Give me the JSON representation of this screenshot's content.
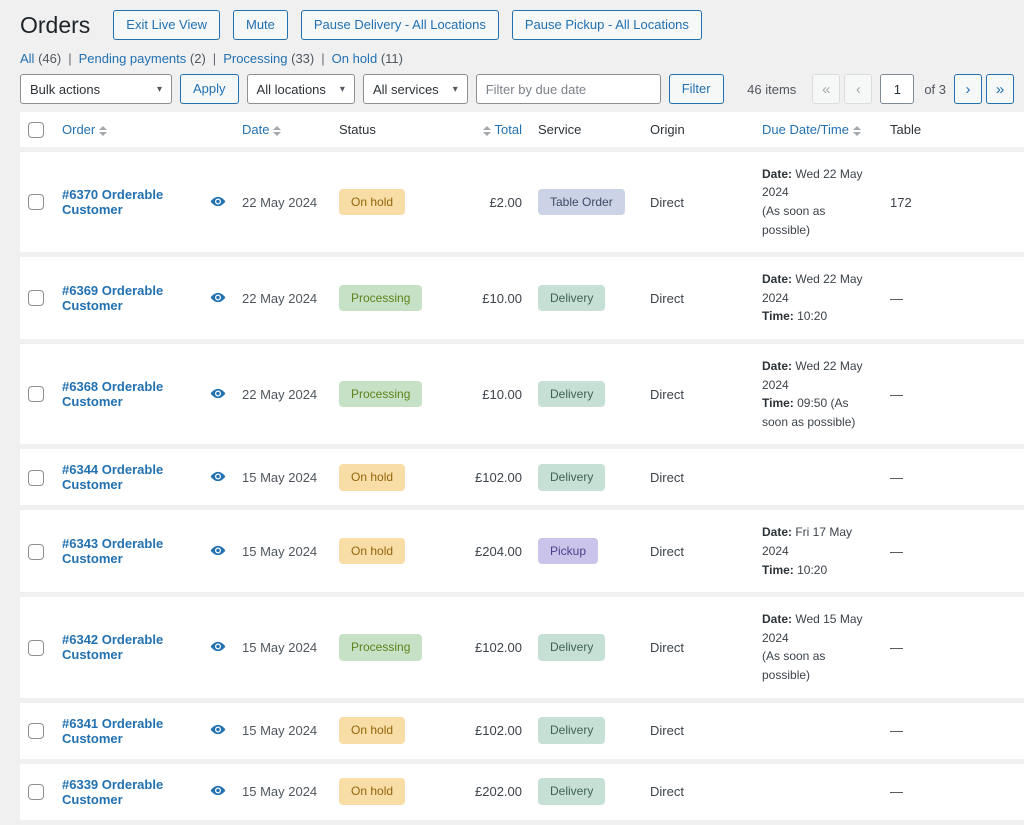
{
  "header": {
    "title": "Orders",
    "buttons": {
      "exit_live_view": "Exit Live View",
      "mute": "Mute",
      "pause_delivery": "Pause Delivery - All Locations",
      "pause_pickup": "Pause Pickup - All Locations"
    }
  },
  "filters": [
    {
      "label": "All",
      "count": "(46)"
    },
    {
      "label": "Pending payments",
      "count": "(2)"
    },
    {
      "label": "Processing",
      "count": "(33)"
    },
    {
      "label": "On hold",
      "count": "(11)"
    }
  ],
  "ui": {
    "separator": "|",
    "select_chevron": "▾"
  },
  "toolbar": {
    "bulk_actions": "Bulk actions",
    "apply": "Apply",
    "locations": "All locations",
    "services": "All services",
    "due_date_placeholder": "Filter by due date",
    "filter": "Filter"
  },
  "pagination": {
    "items": "46 items",
    "first": "«",
    "prev": "‹",
    "current_page": "1",
    "of": "of 3",
    "next": "›",
    "last": "»"
  },
  "table": {
    "headers": {
      "order": "Order",
      "date": "Date",
      "status": "Status",
      "total": "Total",
      "service": "Service",
      "origin": "Origin",
      "due": "Due Date/Time",
      "table": "Table"
    },
    "rows": [
      {
        "order": "#6370 Orderable Customer",
        "date": "22 May 2024",
        "status": {
          "label": "On hold",
          "type": "on-hold"
        },
        "total": "£2.00",
        "service": {
          "label": "Table Order",
          "type": "table-order"
        },
        "origin": "Direct",
        "due": [
          {
            "label": "Date:",
            "value": "Wed 22 May 2024"
          },
          {
            "label": "",
            "value": "(As soon as possible)"
          }
        ],
        "table": "172"
      },
      {
        "order": "#6369 Orderable Customer",
        "date": "22 May 2024",
        "status": {
          "label": "Processing",
          "type": "processing"
        },
        "total": "£10.00",
        "service": {
          "label": "Delivery",
          "type": "delivery"
        },
        "origin": "Direct",
        "due": [
          {
            "label": "Date:",
            "value": "Wed 22 May 2024"
          },
          {
            "label": "Time:",
            "value": "10:20"
          }
        ],
        "table": "—"
      },
      {
        "order": "#6368 Orderable Customer",
        "date": "22 May 2024",
        "status": {
          "label": "Processing",
          "type": "processing"
        },
        "total": "£10.00",
        "service": {
          "label": "Delivery",
          "type": "delivery"
        },
        "origin": "Direct",
        "due": [
          {
            "label": "Date:",
            "value": "Wed 22 May 2024"
          },
          {
            "label": "Time:",
            "value": "09:50 (As soon as possible)"
          }
        ],
        "table": "—"
      },
      {
        "order": "#6344 Orderable Customer",
        "date": "15 May 2024",
        "status": {
          "label": "On hold",
          "type": "on-hold"
        },
        "total": "£102.00",
        "service": {
          "label": "Delivery",
          "type": "delivery"
        },
        "origin": "Direct",
        "due": [],
        "table": "—"
      },
      {
        "order": "#6343 Orderable Customer",
        "date": "15 May 2024",
        "status": {
          "label": "On hold",
          "type": "on-hold"
        },
        "total": "£204.00",
        "service": {
          "label": "Pickup",
          "type": "pickup"
        },
        "origin": "Direct",
        "due": [
          {
            "label": "Date:",
            "value": "Fri 17 May 2024"
          },
          {
            "label": "Time:",
            "value": "10:20"
          }
        ],
        "table": "—"
      },
      {
        "order": "#6342 Orderable Customer",
        "date": "15 May 2024",
        "status": {
          "label": "Processing",
          "type": "processing"
        },
        "total": "£102.00",
        "service": {
          "label": "Delivery",
          "type": "delivery"
        },
        "origin": "Direct",
        "due": [
          {
            "label": "Date:",
            "value": "Wed 15 May 2024"
          },
          {
            "label": "",
            "value": "(As soon as possible)"
          }
        ],
        "table": "—"
      },
      {
        "order": "#6341 Orderable Customer",
        "date": "15 May 2024",
        "status": {
          "label": "On hold",
          "type": "on-hold"
        },
        "total": "£102.00",
        "service": {
          "label": "Delivery",
          "type": "delivery"
        },
        "origin": "Direct",
        "due": [],
        "table": "—"
      },
      {
        "order": "#6339 Orderable Customer",
        "date": "15 May 2024",
        "status": {
          "label": "On hold",
          "type": "on-hold"
        },
        "total": "£202.00",
        "service": {
          "label": "Delivery",
          "type": "delivery"
        },
        "origin": "Direct",
        "due": [],
        "table": "—"
      }
    ]
  },
  "badge_styles": {
    "on-hold": {
      "bg": "#f8dda7",
      "text": "#94660c"
    },
    "processing": {
      "bg": "#c6e1c6",
      "text": "#5b841b"
    },
    "table-order": {
      "bg": "#ccd3e6",
      "text": "#3f4a67"
    },
    "delivery": {
      "bg": "#c7e0d6",
      "text": "#3e6253"
    },
    "pickup": {
      "bg": "#cbc4ea",
      "text": "#4b3f8c"
    }
  },
  "colors": {
    "accent": "#2271b1",
    "page_bg": "#f0f0f1",
    "title": "#1d2327"
  }
}
